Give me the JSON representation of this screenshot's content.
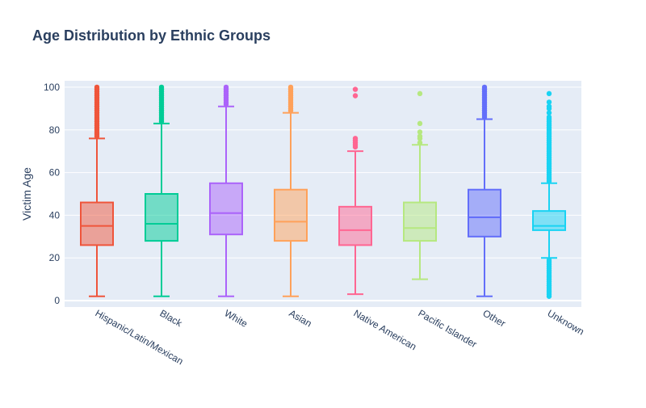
{
  "chart_data": {
    "type": "box",
    "title": "Age Distribution by Ethnic Groups",
    "xlabel": "",
    "ylabel": "Victim Age",
    "ylim": [
      -3,
      103
    ],
    "yticks": [
      0,
      20,
      40,
      60,
      80,
      100
    ],
    "grid": true,
    "legend": "none",
    "categories": [
      "Hispanic/Latin/Mexican",
      "Black",
      "White",
      "Asian",
      "Native American",
      "Pacific Islander",
      "Other",
      "Unknown"
    ],
    "series": [
      {
        "category": "Hispanic/Latin/Mexican",
        "color": "#EF553B",
        "min": 2,
        "q1": 26,
        "median": 35,
        "q3": 46,
        "max": 76,
        "outliers": [
          77,
          78,
          79,
          80,
          81,
          82,
          83,
          84,
          85,
          86,
          87,
          88,
          89,
          90,
          91,
          92,
          93,
          94,
          95,
          96,
          97,
          98,
          99,
          100
        ]
      },
      {
        "category": "Black",
        "color": "#00CC96",
        "min": 2,
        "q1": 28,
        "median": 36,
        "q3": 50,
        "max": 83,
        "outliers": [
          84,
          85,
          86,
          87,
          88,
          89,
          90,
          91,
          92,
          93,
          94,
          95,
          96,
          97,
          98,
          99,
          100
        ]
      },
      {
        "category": "White",
        "color": "#AB63FA",
        "min": 2,
        "q1": 31,
        "median": 41,
        "q3": 55,
        "max": 91,
        "outliers": [
          92,
          93,
          94,
          95,
          96,
          97,
          98,
          99,
          100
        ]
      },
      {
        "category": "Asian",
        "color": "#FFA15A",
        "min": 2,
        "q1": 28,
        "median": 37,
        "q3": 52,
        "max": 88,
        "outliers": [
          89,
          90,
          91,
          92,
          93,
          94,
          95,
          96,
          97,
          98,
          99,
          100
        ]
      },
      {
        "category": "Native American",
        "color": "#FF6692",
        "min": 3,
        "q1": 26,
        "median": 33,
        "q3": 44,
        "max": 70,
        "outliers": [
          72,
          73,
          74,
          75,
          76,
          96,
          99
        ]
      },
      {
        "category": "Pacific Islander",
        "color": "#B6E880",
        "min": 10,
        "q1": 28,
        "median": 34,
        "q3": 46,
        "max": 73,
        "outliers": [
          74,
          76,
          77,
          79,
          83,
          97
        ]
      },
      {
        "category": "Other",
        "color": "#636EFA",
        "min": 2,
        "q1": 30,
        "median": 39,
        "q3": 52,
        "max": 85,
        "outliers": [
          86,
          87,
          88,
          89,
          90,
          91,
          92,
          93,
          94,
          95,
          96,
          97,
          98,
          99,
          100
        ]
      },
      {
        "category": "Unknown",
        "color": "#19D3F3",
        "min": 20,
        "q1": 33,
        "median": 35,
        "q3": 42,
        "max": 55,
        "outliers": [
          2,
          3,
          4,
          5,
          6,
          7,
          8,
          9,
          10,
          11,
          12,
          13,
          14,
          15,
          16,
          17,
          18,
          19,
          56,
          57,
          58,
          59,
          60,
          61,
          62,
          63,
          64,
          65,
          66,
          67,
          68,
          69,
          70,
          71,
          72,
          73,
          74,
          75,
          76,
          77,
          78,
          79,
          80,
          81,
          82,
          83,
          84,
          85,
          86,
          88,
          90,
          91,
          93,
          97
        ]
      }
    ]
  }
}
